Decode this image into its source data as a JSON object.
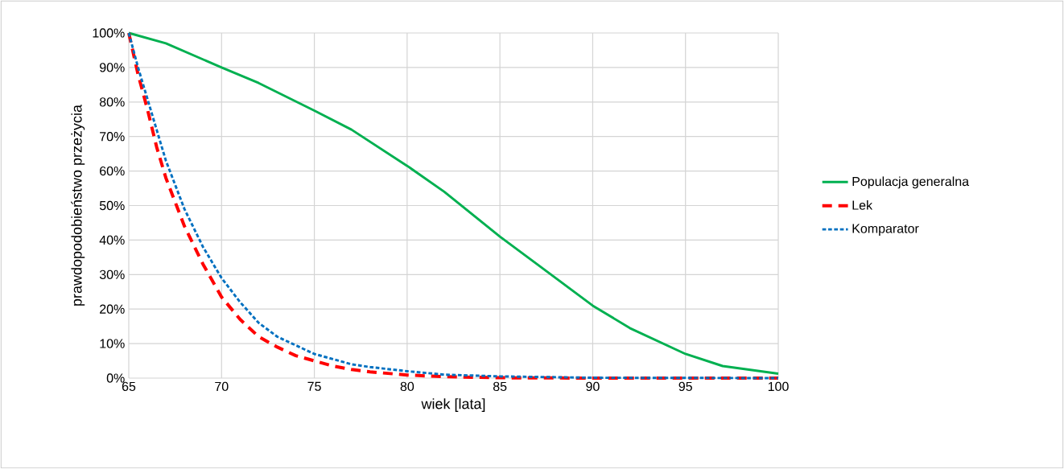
{
  "chart_data": {
    "type": "line",
    "xlabel": "wiek [lata]",
    "ylabel": "prawdopodobieństwo przeżycia",
    "xlim": [
      65,
      100
    ],
    "xticks": [
      65,
      70,
      75,
      80,
      85,
      90,
      95,
      100
    ],
    "ylim": [
      0,
      100
    ],
    "yticks": [
      {
        "value": 0,
        "label": "0%"
      },
      {
        "value": 10,
        "label": "10%"
      },
      {
        "value": 20,
        "label": "20%"
      },
      {
        "value": 30,
        "label": "30%"
      },
      {
        "value": 40,
        "label": "40%"
      },
      {
        "value": 50,
        "label": "50%"
      },
      {
        "value": 60,
        "label": "60%"
      },
      {
        "value": 70,
        "label": "70%"
      },
      {
        "value": 80,
        "label": "80%"
      },
      {
        "value": 90,
        "label": "90%"
      },
      {
        "value": 100,
        "label": "100%"
      }
    ],
    "grid": true,
    "legend": "right",
    "marker": "none",
    "series": [
      {
        "name": "Populacja generalna",
        "color": "#00b050",
        "line_style": "solid",
        "x": [
          65,
          67,
          70,
          72,
          75,
          77,
          80,
          82,
          85,
          87,
          90,
          92,
          95,
          97,
          100
        ],
        "values": [
          100,
          97,
          90,
          85.5,
          77.5,
          72,
          61.5,
          54,
          41,
          33,
          21,
          14.5,
          7,
          3.5,
          1.3
        ]
      },
      {
        "name": "Lek",
        "color": "#ff0000",
        "line_style": "dashed",
        "x": [
          65,
          65.5,
          66,
          66.5,
          67,
          68,
          69,
          70,
          71,
          72,
          73,
          74,
          75,
          76,
          77,
          78,
          80,
          82,
          85,
          90,
          100
        ],
        "values": [
          100,
          88,
          78,
          67,
          58,
          44,
          33,
          23.5,
          17,
          12,
          9,
          6.5,
          5,
          3.5,
          2.5,
          1.8,
          0.9,
          0.4,
          0.1,
          0,
          0
        ]
      },
      {
        "name": "Komparator",
        "color": "#0070c0",
        "line_style": "dotted",
        "x": [
          65,
          65.5,
          66,
          66.5,
          67,
          68,
          69,
          70,
          71,
          72,
          73,
          74,
          75,
          76,
          77,
          78,
          80,
          82,
          85,
          90,
          100
        ],
        "values": [
          100,
          90,
          81,
          72,
          63,
          49,
          38,
          29,
          22,
          16,
          12,
          9.5,
          7,
          5.5,
          4,
          3.2,
          2,
          1,
          0.5,
          0.1,
          0
        ]
      }
    ]
  }
}
